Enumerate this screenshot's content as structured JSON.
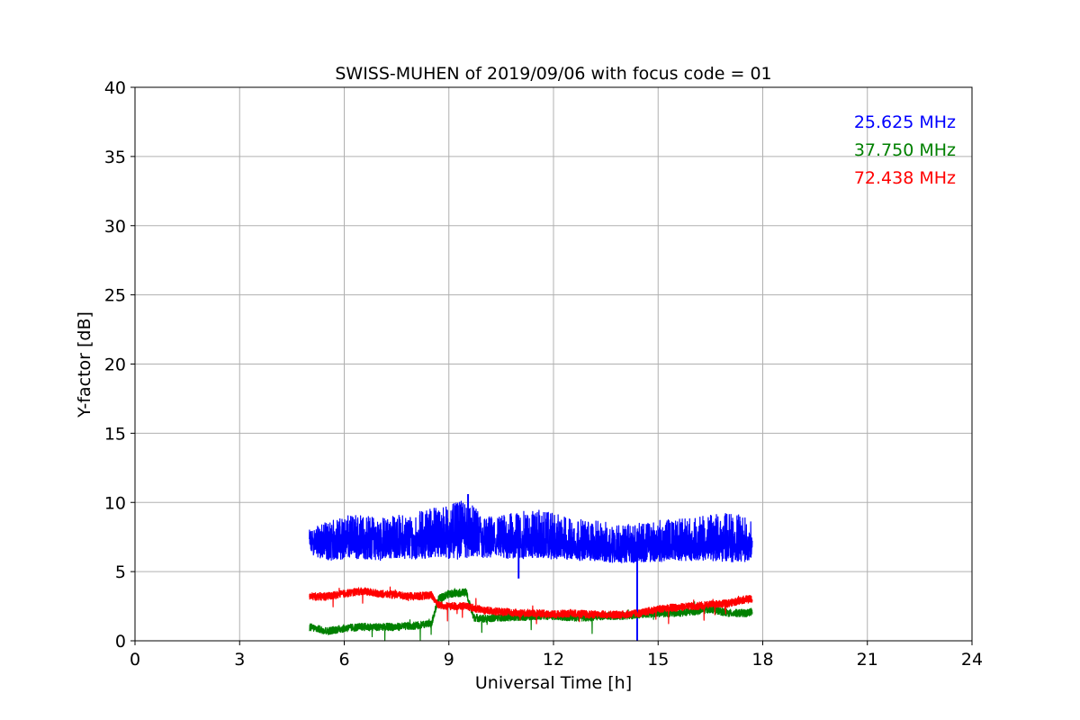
{
  "chart_data": {
    "type": "line",
    "title": "SWISS-MUHEN of 2019/09/06 with focus code = 01",
    "xlabel": "Universal Time [h]",
    "ylabel": "Y-factor [dB]",
    "xlim": [
      0,
      24
    ],
    "ylim": [
      0,
      40
    ],
    "xticks": [
      0,
      3,
      6,
      9,
      12,
      15,
      18,
      21,
      24
    ],
    "yticks": [
      0,
      5,
      10,
      15,
      20,
      25,
      30,
      35,
      40
    ],
    "grid": true,
    "legend_position": "top-right",
    "series": [
      {
        "name": "25.625 MHz",
        "color": "#0000ff",
        "x": [
          5.0,
          5.5,
          6.0,
          6.5,
          7.0,
          7.5,
          8.0,
          8.5,
          9.0,
          9.5,
          10.0,
          10.5,
          11.0,
          11.5,
          12.0,
          12.5,
          13.0,
          13.5,
          14.0,
          14.5,
          15.0,
          15.5,
          16.0,
          16.5,
          17.0,
          17.5,
          17.7
        ],
        "y": [
          7.2,
          7.0,
          7.3,
          7.4,
          7.2,
          7.3,
          7.1,
          7.9,
          7.7,
          8.2,
          7.3,
          7.2,
          7.1,
          7.3,
          7.2,
          7.0,
          6.9,
          6.7,
          6.8,
          6.7,
          6.8,
          7.0,
          7.0,
          7.1,
          7.2,
          7.2,
          7.0
        ],
        "range_low": [
          6.3,
          5.8,
          5.9,
          5.9,
          5.8,
          6.0,
          5.9,
          6.0,
          5.8,
          6.0,
          5.9,
          5.9,
          5.9,
          6.0,
          5.9,
          5.8,
          5.8,
          5.7,
          5.6,
          5.7,
          5.7,
          5.8,
          5.8,
          5.8,
          5.7,
          5.7,
          5.8
        ],
        "range_high": [
          8.0,
          8.6,
          9.0,
          9.2,
          8.9,
          9.1,
          9.2,
          9.7,
          9.8,
          10.2,
          9.0,
          9.1,
          9.3,
          9.5,
          9.2,
          8.9,
          8.7,
          8.6,
          8.4,
          8.5,
          8.7,
          8.8,
          8.9,
          9.1,
          9.3,
          9.0,
          8.5
        ],
        "spikes": [
          [
            9.55,
            10.6
          ],
          [
            11.0,
            4.5
          ],
          [
            14.4,
            0.0
          ]
        ]
      },
      {
        "name": "37.750 MHz",
        "color": "#008000",
        "x": [
          5.0,
          5.5,
          6.0,
          6.5,
          7.0,
          7.5,
          8.0,
          8.5,
          8.7,
          9.0,
          9.5,
          9.7,
          10.0,
          10.5,
          11.0,
          11.5,
          12.0,
          12.5,
          13.0,
          13.5,
          14.0,
          14.5,
          15.0,
          15.5,
          16.0,
          16.5,
          17.0,
          17.5,
          17.7
        ],
        "y": [
          1.0,
          0.7,
          0.9,
          1.0,
          1.0,
          1.0,
          1.1,
          1.2,
          3.0,
          3.4,
          3.5,
          1.7,
          1.6,
          1.7,
          1.7,
          1.8,
          1.8,
          1.7,
          1.7,
          1.8,
          1.8,
          1.9,
          2.0,
          2.0,
          2.1,
          2.3,
          2.0,
          2.0,
          2.1
        ]
      },
      {
        "name": "72.438 MHz",
        "color": "#ff0000",
        "x": [
          5.0,
          5.5,
          6.0,
          6.5,
          7.0,
          7.5,
          8.0,
          8.5,
          8.7,
          9.0,
          9.5,
          10.0,
          10.5,
          11.0,
          11.5,
          12.0,
          12.5,
          13.0,
          13.5,
          14.0,
          14.5,
          15.0,
          15.5,
          16.0,
          16.5,
          17.0,
          17.5,
          17.7
        ],
        "y": [
          3.2,
          3.2,
          3.4,
          3.6,
          3.4,
          3.3,
          3.2,
          3.3,
          2.6,
          2.5,
          2.5,
          2.2,
          2.1,
          2.0,
          2.0,
          1.9,
          2.0,
          1.9,
          1.9,
          1.9,
          2.0,
          2.3,
          2.4,
          2.5,
          2.6,
          2.7,
          3.0,
          3.0
        ]
      }
    ]
  }
}
